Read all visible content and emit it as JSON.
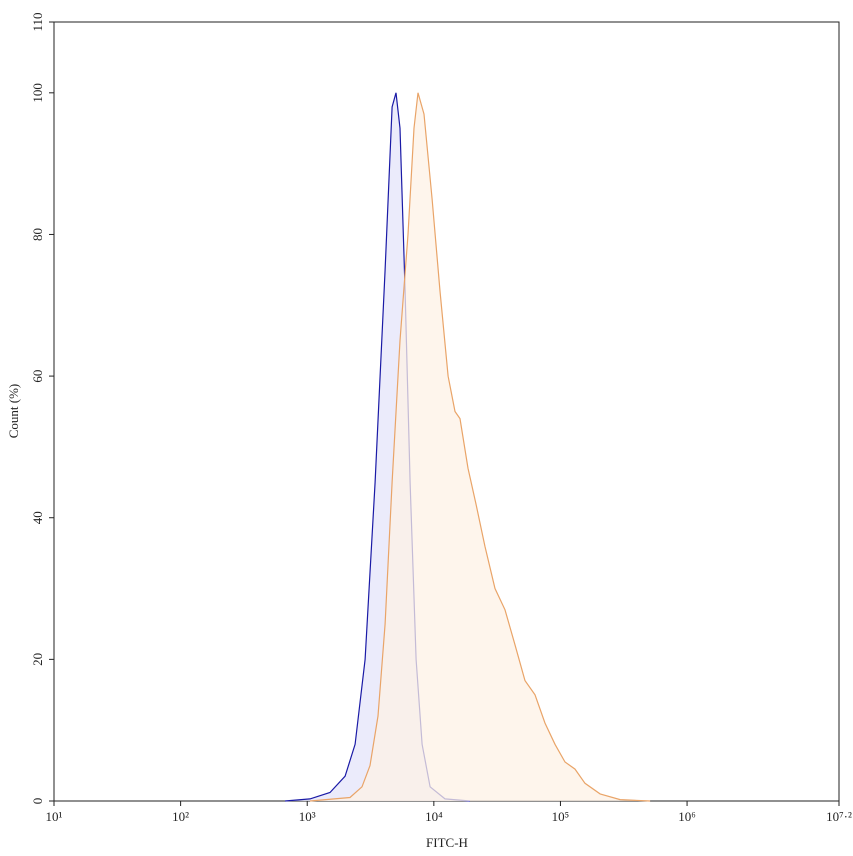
{
  "chart_data": {
    "type": "area",
    "x_label": "FITC-H",
    "y_label": "Count (%)",
    "log_x": true,
    "xlim": [
      10,
      15848932
    ],
    "xticks": [
      {
        "value": 10,
        "label": "10¹"
      },
      {
        "value": 100,
        "label": "10²"
      },
      {
        "value": 1000,
        "label": "10³"
      },
      {
        "value": 10000,
        "label": "10⁴"
      },
      {
        "value": 100000,
        "label": "10⁵"
      },
      {
        "value": 1000000,
        "label": "10⁶"
      },
      {
        "value": 15848932,
        "label": "10⁷·²"
      }
    ],
    "ylim": [
      0,
      110
    ],
    "yticks": [
      0,
      20,
      40,
      60,
      80,
      100,
      110
    ],
    "series": [
      {
        "color": "#1a1aa6",
        "fill": "#e4e4fa",
        "x": [
          668,
          1052,
          1514,
          1990,
          2388,
          2864,
          3436,
          4121,
          4680,
          5027,
          5404,
          5925,
          6490,
          7240,
          8080,
          9340,
          12250,
          19300
        ],
        "values": [
          0,
          0.3,
          1.2,
          3.5,
          8,
          20,
          45,
          75,
          98,
          100,
          95,
          72,
          45,
          20,
          8,
          2,
          0.3,
          0
        ]
      },
      {
        "color": "#e9a468",
        "fill": "#fdf2e6",
        "x": [
          1052,
          2178,
          2710,
          3134,
          3625,
          4121,
          4680,
          5404,
          6250,
          6970,
          7500,
          8360,
          9680,
          11190,
          12950,
          14700,
          16100,
          18620,
          21500,
          25330,
          30400,
          36500,
          43800,
          52500,
          63000,
          75500,
          90600,
          108600,
          130300,
          156300,
          205500,
          295800,
          510900
        ],
        "values": [
          0,
          0.5,
          2,
          5,
          12,
          25,
          45,
          65,
          80,
          95,
          100,
          97,
          85,
          72,
          60,
          55,
          54,
          47,
          42,
          36,
          30,
          27,
          22,
          17,
          15,
          11,
          8,
          5.5,
          4.5,
          2.5,
          1,
          0.2,
          0
        ]
      }
    ]
  }
}
